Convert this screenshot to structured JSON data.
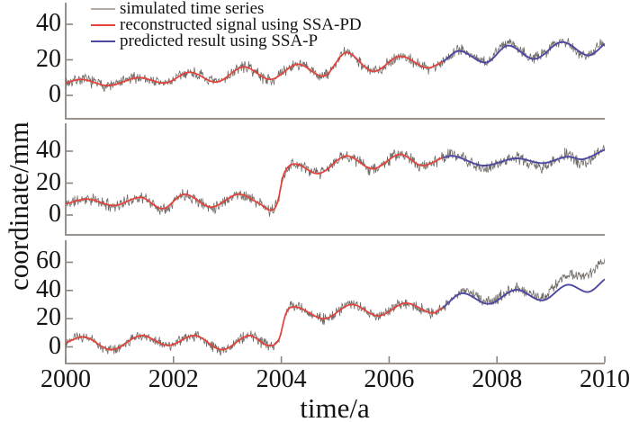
{
  "chart_data": {
    "type": "line",
    "title": "",
    "xlabel": "time/a",
    "ylabel": "coordinate/mm",
    "x_range": [
      2000,
      2010
    ],
    "xticks": [
      2000,
      2002,
      2004,
      2006,
      2008,
      2010
    ],
    "grid": false,
    "legend_position": "top-left-inside",
    "series_names": [
      "simulated time series",
      "reconstructed signal using SSA-PD",
      "predicted result using SSA-P"
    ],
    "colors": {
      "legend_simulated": "#b5aba4",
      "simulated_line": "#57504a",
      "reconstructed_line": "#e6413a",
      "predicted_line": "#4d49a3",
      "axis": "#8d847e",
      "text": "#141414"
    },
    "subplots": [
      {
        "position": "top",
        "yticks": [
          0,
          20,
          40
        ],
        "ylim": [
          -13,
          52
        ],
        "noise_amplitude_mm": 2.6,
        "noise_seed": 7,
        "reconstructed_2000_2007": [
          [
            2000,
            7
          ],
          [
            2000.3,
            9
          ],
          [
            2000.8,
            5.5
          ],
          [
            2001.35,
            10
          ],
          [
            2001.85,
            7
          ],
          [
            2002.3,
            13
          ],
          [
            2002.8,
            7.5
          ],
          [
            2003.3,
            16
          ],
          [
            2003.8,
            9
          ],
          [
            2004.3,
            17.5
          ],
          [
            2004.8,
            11
          ],
          [
            2005.2,
            24
          ],
          [
            2005.7,
            13.5
          ],
          [
            2006.2,
            22
          ],
          [
            2006.7,
            15.5
          ],
          [
            2007,
            19
          ]
        ],
        "predicted_2007_2010": [
          [
            2007,
            19
          ],
          [
            2007.3,
            25
          ],
          [
            2007.8,
            18.5
          ],
          [
            2008.2,
            28
          ],
          [
            2008.7,
            20.5
          ],
          [
            2009.2,
            30
          ],
          [
            2009.7,
            22.5
          ],
          [
            2010,
            29
          ]
        ],
        "simulated_trend_2007_2010": [
          [
            2007.3,
            26
          ],
          [
            2007.8,
            19
          ],
          [
            2008.2,
            30
          ],
          [
            2008.7,
            21
          ],
          [
            2009.2,
            31
          ],
          [
            2009.6,
            23
          ],
          [
            2010,
            30
          ]
        ]
      },
      {
        "position": "middle",
        "yticks": [
          0,
          20,
          40
        ],
        "ylim": [
          -12,
          57
        ],
        "noise_amplitude_mm": 3.0,
        "noise_seed": 11,
        "reconstructed_2000_2007": [
          [
            2000,
            7
          ],
          [
            2000.4,
            10
          ],
          [
            2000.9,
            6
          ],
          [
            2001.4,
            11
          ],
          [
            2001.8,
            4
          ],
          [
            2002.2,
            13
          ],
          [
            2002.7,
            5
          ],
          [
            2003.2,
            13
          ],
          [
            2003.6,
            7
          ],
          [
            2003.8,
            3
          ],
          [
            2003.92,
            7
          ],
          [
            2004.05,
            26
          ],
          [
            2004.25,
            32
          ],
          [
            2004.7,
            26
          ],
          [
            2005.2,
            37
          ],
          [
            2005.7,
            29
          ],
          [
            2006.2,
            38
          ],
          [
            2006.6,
            31
          ],
          [
            2007,
            36
          ]
        ],
        "predicted_2007_2010": [
          [
            2007,
            36
          ],
          [
            2007.2,
            37
          ],
          [
            2007.75,
            31
          ],
          [
            2008.35,
            35.5
          ],
          [
            2008.85,
            32.5
          ],
          [
            2009.3,
            36.5
          ],
          [
            2009.6,
            35
          ],
          [
            2010,
            41
          ]
        ],
        "simulated_trend_2007_2010": [
          [
            2007.2,
            38
          ],
          [
            2007.75,
            29
          ],
          [
            2008.3,
            36
          ],
          [
            2008.85,
            30
          ],
          [
            2009.3,
            38
          ],
          [
            2009.6,
            32
          ],
          [
            2010,
            42
          ]
        ]
      },
      {
        "position": "bottom",
        "yticks": [
          0,
          20,
          40,
          60
        ],
        "ylim": [
          -12,
          76
        ],
        "noise_amplitude_mm": 3.0,
        "noise_seed": 23,
        "reconstructed_2000_2007": [
          [
            2000,
            3
          ],
          [
            2000.35,
            7
          ],
          [
            2000.85,
            -2
          ],
          [
            2001.4,
            8
          ],
          [
            2001.9,
            1
          ],
          [
            2002.4,
            8
          ],
          [
            2002.9,
            -2
          ],
          [
            2003.4,
            8
          ],
          [
            2003.75,
            1
          ],
          [
            2003.95,
            5
          ],
          [
            2004.1,
            25
          ],
          [
            2004.3,
            28
          ],
          [
            2004.8,
            20
          ],
          [
            2005.3,
            30
          ],
          [
            2005.8,
            22
          ],
          [
            2006.3,
            31
          ],
          [
            2006.8,
            24
          ],
          [
            2007,
            28
          ]
        ],
        "predicted_2007_2010": [
          [
            2007,
            28
          ],
          [
            2007.35,
            38
          ],
          [
            2007.85,
            30.5
          ],
          [
            2008.35,
            40.5
          ],
          [
            2008.85,
            33
          ],
          [
            2009.3,
            44
          ],
          [
            2009.7,
            39
          ],
          [
            2010,
            48
          ]
        ],
        "simulated_trend_2007_2010": [
          [
            2007.35,
            40
          ],
          [
            2007.85,
            32
          ],
          [
            2008.35,
            42
          ],
          [
            2008.85,
            35
          ],
          [
            2009.1,
            45
          ],
          [
            2009.35,
            51
          ],
          [
            2009.6,
            50
          ],
          [
            2009.8,
            55
          ],
          [
            2010,
            62
          ]
        ]
      }
    ]
  }
}
